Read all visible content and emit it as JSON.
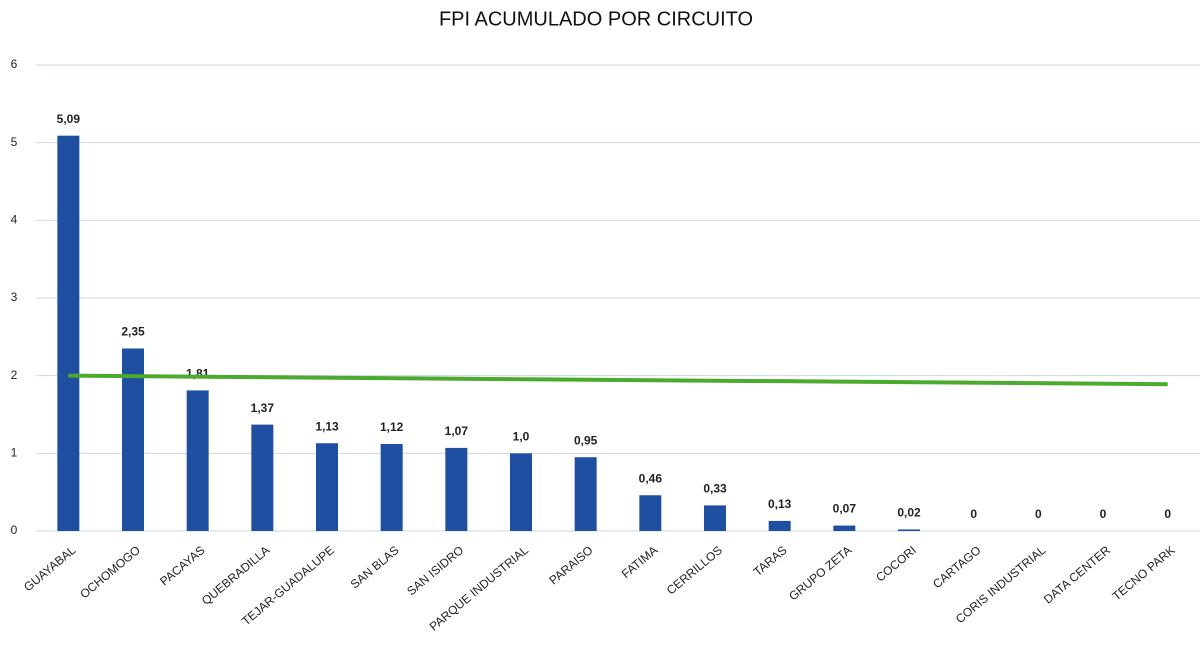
{
  "chart_data": {
    "type": "bar",
    "title": "FPI ACUMULADO POR CIRCUITO",
    "categories": [
      "GUAYABAL",
      "OCHOMOGO",
      "PACAYAS",
      "QUEBRADILLA",
      "TEJAR-GUADALUPE",
      "SAN BLAS",
      "SAN ISIDRO",
      "PARQUE INDUSTRIAL",
      "PARAISO",
      "FATIMA",
      "CERRILLOS",
      "TARAS",
      "GRUPO ZETA",
      "COCORI",
      "CARTAGO",
      "CORIS INDUSTRIAL",
      "DATA CENTER",
      "TECNO PARK"
    ],
    "values": [
      5.09,
      2.35,
      1.81,
      1.37,
      1.13,
      1.12,
      1.07,
      1.0,
      0.95,
      0.46,
      0.33,
      0.13,
      0.07,
      0.02,
      0,
      0,
      0,
      0
    ],
    "value_labels": [
      "5,09",
      "2,35",
      "1,81",
      "1,37",
      "1,13",
      "1,12",
      "1,07",
      "1,0",
      "0,95",
      "0,46",
      "0,33",
      "0,13",
      "0,07",
      "0,02",
      "0",
      "0",
      "0",
      "0"
    ],
    "color": "#1f4fa0",
    "target_line": {
      "start": 2.0,
      "end": 1.89,
      "color": "#4caa2e"
    },
    "ylim": [
      0,
      6
    ],
    "yticks": [
      0,
      1,
      2,
      3,
      4,
      5,
      6
    ],
    "grid": true
  }
}
